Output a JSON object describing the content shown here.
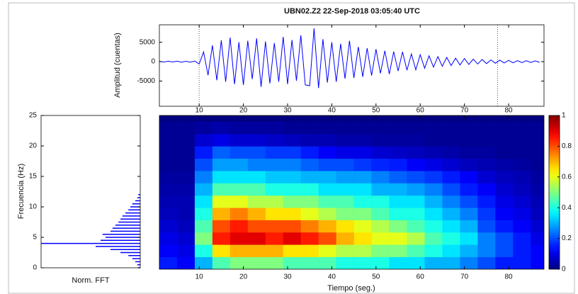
{
  "chart_data": [
    {
      "type": "line",
      "title": "UBN02.Z2   22-Sep-2018 03:05:40 UTC",
      "ylabel": "Amplitud (cuentas)",
      "color": "#0000ff",
      "x": [
        1,
        2,
        3,
        4,
        5,
        6,
        7,
        8,
        9,
        10,
        11,
        12,
        13,
        14,
        15,
        16,
        17,
        18,
        19,
        20,
        21,
        22,
        23,
        24,
        25,
        26,
        27,
        28,
        29,
        30,
        31,
        32,
        33,
        34,
        35,
        36,
        37,
        38,
        39,
        40,
        41,
        42,
        43,
        44,
        45,
        46,
        47,
        48,
        49,
        50,
        51,
        52,
        53,
        54,
        55,
        56,
        57,
        58,
        59,
        60,
        61,
        62,
        63,
        64,
        65,
        66,
        67,
        68,
        69,
        70,
        71,
        72,
        73,
        74,
        75,
        76,
        77,
        78,
        79,
        80,
        81,
        82,
        83,
        84,
        85,
        86,
        87
      ],
      "values": [
        80,
        -100,
        120,
        -90,
        110,
        -130,
        90,
        -120,
        150,
        -600,
        2500,
        -3500,
        4200,
        -4800,
        5500,
        -5200,
        6200,
        -5800,
        5000,
        -6000,
        5400,
        -4500,
        6000,
        -6500,
        5200,
        -5600,
        4800,
        -5200,
        6400,
        -5800,
        5600,
        -4900,
        6800,
        -6000,
        -6200,
        8600,
        -6800,
        5800,
        -5400,
        5000,
        -5200,
        4600,
        -4400,
        5400,
        -4200,
        3800,
        -3900,
        3500,
        -3600,
        3200,
        -3000,
        2800,
        -3200,
        2600,
        -2400,
        2500,
        -2200,
        2000,
        -2100,
        1800,
        -1700,
        1500,
        -1400,
        1300,
        -1200,
        1100,
        -1000,
        900,
        -850,
        800,
        -700,
        650,
        -600,
        550,
        -500,
        450,
        -400,
        380,
        -350,
        330,
        -300,
        280,
        -260,
        240,
        -220,
        200,
        -180
      ],
      "xlim": [
        1,
        88
      ],
      "ylim": [
        -11500,
        9500
      ],
      "xticks": [
        10,
        20,
        30,
        40,
        50,
        60,
        70,
        80
      ],
      "yticks": [
        -5000,
        0,
        5000
      ],
      "vlines": [
        10,
        77.5
      ]
    },
    {
      "type": "fft",
      "xlabel": "Norm. FFT",
      "ylabel": "Frecuencia (Hz)",
      "color": "#0000ff",
      "y": [
        0,
        0.5,
        1,
        1.5,
        2,
        2.5,
        3,
        3.5,
        4,
        4.5,
        5,
        5.5,
        6,
        6.5,
        7,
        7.5,
        8,
        8.5,
        9,
        9.5,
        10,
        10.5,
        11,
        11.5,
        12
      ],
      "values": [
        0.02,
        0.03,
        0.05,
        0.08,
        0.12,
        0.2,
        0.3,
        0.45,
        1,
        0.4,
        0.35,
        0.38,
        0.3,
        0.28,
        0.25,
        0.22,
        0.2,
        0.18,
        0.15,
        0.12,
        0.1,
        0.08,
        0.05,
        0.03,
        0.02
      ],
      "xlim": [
        0,
        1
      ],
      "ylim": [
        0,
        25
      ],
      "yticks": [
        0,
        5,
        10,
        15,
        20,
        25
      ]
    },
    {
      "type": "heatmap",
      "xlabel": "Tiempo (seg.)",
      "x": [
        3,
        7,
        11,
        15,
        19,
        23,
        27,
        31,
        35,
        39,
        43,
        47,
        51,
        55,
        59,
        63,
        67,
        71,
        75,
        79,
        83,
        87
      ],
      "y": [
        1,
        3,
        5,
        7,
        9,
        11,
        13,
        15,
        17,
        19,
        21,
        23
      ],
      "z": [
        [
          0.15,
          0.12,
          0.3,
          0.45,
          0.5,
          0.5,
          0.5,
          0.45,
          0.45,
          0.45,
          0.4,
          0.4,
          0.4,
          0.35,
          0.35,
          0.3,
          0.3,
          0.25,
          0.2,
          0.15,
          0.15,
          0.12
        ],
        [
          0.12,
          0.1,
          0.4,
          0.65,
          0.7,
          0.7,
          0.7,
          0.65,
          0.65,
          0.6,
          0.55,
          0.55,
          0.5,
          0.5,
          0.45,
          0.4,
          0.35,
          0.3,
          0.25,
          0.2,
          0.15,
          0.12
        ],
        [
          0.1,
          0.08,
          0.5,
          0.85,
          0.9,
          0.9,
          0.85,
          0.9,
          0.85,
          0.8,
          0.7,
          0.65,
          0.6,
          0.6,
          0.55,
          0.45,
          0.4,
          0.35,
          0.25,
          0.2,
          0.15,
          0.1
        ],
        [
          0.08,
          0.06,
          0.45,
          0.8,
          0.85,
          0.8,
          0.8,
          0.8,
          0.75,
          0.7,
          0.65,
          0.6,
          0.55,
          0.5,
          0.45,
          0.4,
          0.35,
          0.3,
          0.2,
          0.15,
          0.12,
          0.08
        ],
        [
          0.06,
          0.05,
          0.4,
          0.7,
          0.75,
          0.7,
          0.65,
          0.65,
          0.6,
          0.55,
          0.5,
          0.5,
          0.45,
          0.4,
          0.4,
          0.35,
          0.3,
          0.25,
          0.18,
          0.12,
          0.1,
          0.06
        ],
        [
          0.05,
          0.05,
          0.35,
          0.6,
          0.6,
          0.55,
          0.55,
          0.5,
          0.5,
          0.45,
          0.45,
          0.4,
          0.4,
          0.35,
          0.35,
          0.3,
          0.25,
          0.2,
          0.15,
          0.1,
          0.08,
          0.05
        ],
        [
          0.04,
          0.04,
          0.3,
          0.45,
          0.45,
          0.45,
          0.4,
          0.4,
          0.4,
          0.35,
          0.35,
          0.35,
          0.3,
          0.3,
          0.28,
          0.25,
          0.2,
          0.15,
          0.12,
          0.08,
          0.06,
          0.04
        ],
        [
          0.03,
          0.03,
          0.25,
          0.35,
          0.35,
          0.35,
          0.32,
          0.32,
          0.3,
          0.3,
          0.28,
          0.28,
          0.25,
          0.22,
          0.2,
          0.18,
          0.15,
          0.12,
          0.08,
          0.06,
          0.05,
          0.03
        ],
        [
          0.02,
          0.02,
          0.2,
          0.28,
          0.28,
          0.25,
          0.25,
          0.25,
          0.22,
          0.2,
          0.2,
          0.18,
          0.16,
          0.15,
          0.12,
          0.1,
          0.08,
          0.06,
          0.05,
          0.04,
          0.03,
          0.02
        ],
        [
          0.02,
          0.02,
          0.15,
          0.22,
          0.2,
          0.2,
          0.18,
          0.18,
          0.15,
          0.12,
          0.1,
          0.1,
          0.08,
          0.07,
          0.06,
          0.05,
          0.04,
          0.03,
          0.03,
          0.02,
          0.02,
          0.02
        ],
        [
          0.02,
          0.02,
          0.08,
          0.1,
          0.08,
          0.08,
          0.07,
          0.06,
          0.05,
          0.05,
          0.04,
          0.04,
          0.03,
          0.03,
          0.03,
          0.02,
          0.02,
          0.02,
          0.02,
          0.02,
          0.02,
          0.02
        ],
        [
          0.02,
          0.02,
          0.03,
          0.04,
          0.03,
          0.03,
          0.03,
          0.02,
          0.02,
          0.02,
          0.02,
          0.02,
          0.02,
          0.02,
          0.02,
          0.02,
          0.02,
          0.02,
          0.02,
          0.02,
          0.02,
          0.02
        ]
      ],
      "xlim": [
        1,
        88
      ],
      "ylim": [
        0,
        25
      ],
      "xticks": [
        10,
        20,
        30,
        40,
        50,
        60,
        70,
        80
      ],
      "zlim": [
        0,
        1
      ],
      "colorbar_ticks": [
        0,
        0.2,
        0.4,
        0.6,
        0.8,
        1
      ]
    }
  ]
}
